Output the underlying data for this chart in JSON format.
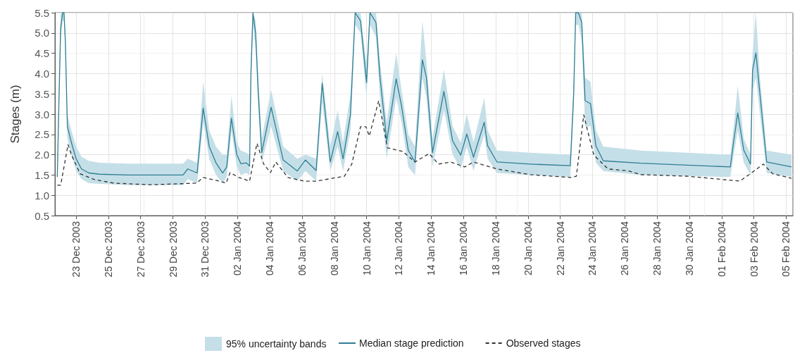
{
  "chart_data": {
    "type": "line",
    "ylabel": "Stages (m)",
    "annotations": [
      "95% uncertainty bands"
    ],
    "xlim": [
      "2003-12-21T16:30",
      "2004-02-05T10:00"
    ],
    "xticks": [
      {
        "value": "2003-12-23",
        "label": "23 Dec 2003"
      },
      {
        "value": "2003-12-25",
        "label": "25 Dec 2003"
      },
      {
        "value": "2003-12-27",
        "label": "27 Dec 2003"
      },
      {
        "value": "2003-12-29",
        "label": "29 Dec 2003"
      },
      {
        "value": "2003-12-31",
        "label": "31 Dec 2003"
      },
      {
        "value": "2004-01-02",
        "label": "02 Jan 2004"
      },
      {
        "value": "2004-01-04",
        "label": "04 Jan 2004"
      },
      {
        "value": "2004-01-06",
        "label": "06 Jan 2004"
      },
      {
        "value": "2004-01-08",
        "label": "08 Jan 2004"
      },
      {
        "value": "2004-01-10",
        "label": "10 Jan 2004"
      },
      {
        "value": "2004-01-12",
        "label": "12 Jan 2004"
      },
      {
        "value": "2004-01-14",
        "label": "14 Jan 2004"
      },
      {
        "value": "2004-01-16",
        "label": "16 Jan 2004"
      },
      {
        "value": "2004-01-18",
        "label": "18 Jan 2004"
      },
      {
        "value": "2004-01-20",
        "label": "20 Jan 2004"
      },
      {
        "value": "2004-01-22",
        "label": "22 Jan 2004"
      },
      {
        "value": "2004-01-24",
        "label": "24 Jan 2004"
      },
      {
        "value": "2004-01-26",
        "label": "26 Jan 2004"
      },
      {
        "value": "2004-01-28",
        "label": "28 Jan 2004"
      },
      {
        "value": "2004-01-30",
        "label": "30 Jan 2004"
      },
      {
        "value": "2004-02-01",
        "label": "01 Feb 2004"
      },
      {
        "value": "2004-02-03",
        "label": "03 Feb 2004"
      },
      {
        "value": "2004-02-05",
        "label": "05 Feb 2004"
      }
    ],
    "ylim": [
      0.5,
      5.5
    ],
    "yticks": [
      {
        "value": 0.5,
        "label": "0.5"
      },
      {
        "value": 1,
        "label": "1.0"
      },
      {
        "value": 1.5,
        "label": "1.5"
      },
      {
        "value": 2,
        "label": "2.0"
      },
      {
        "value": 2.5,
        "label": "2.5"
      },
      {
        "value": 3,
        "label": "3.0"
      },
      {
        "value": 3.5,
        "label": "3.5"
      },
      {
        "value": 4,
        "label": "4.0"
      },
      {
        "value": 4.5,
        "label": "4.5"
      },
      {
        "value": 5,
        "label": "5.0"
      },
      {
        "value": 5.5,
        "label": "5.5"
      }
    ],
    "grid": true,
    "legend": "bottom",
    "marker": "none",
    "series": [
      {
        "name": "Median stage prediction",
        "color": "#2e7f92",
        "line_style": "solid",
        "x": [
          "2003-12-21T20:00",
          "2003-12-21T23:00",
          "2003-12-22T01:00",
          "2003-12-22T04:00",
          "2003-12-22T06:00",
          "2003-12-22T08:00",
          "2003-12-22T11:00",
          "2003-12-22T17:00",
          "2003-12-23T00:00",
          "2003-12-23T08:00",
          "2003-12-23T19:00",
          "2003-12-24T11:00",
          "2003-12-26T05:00",
          "2003-12-29T15:00",
          "2003-12-29T22:00",
          "2003-12-30T12:00",
          "2003-12-30T21:00",
          "2003-12-31T06:00",
          "2003-12-31T16:00",
          "2004-01-01T02:00",
          "2004-01-01T08:00",
          "2004-01-01T15:00",
          "2004-01-01T23:00",
          "2004-01-02T05:00",
          "2004-01-02T13:00",
          "2004-01-02T18:00",
          "2004-01-02T20:00",
          "2004-01-02T23:00",
          "2004-01-03T03:00",
          "2004-01-03T07:00",
          "2004-01-03T12:00",
          "2004-01-04T02:00",
          "2004-01-04T20:00",
          "2004-01-05T17:00",
          "2004-01-06T05:00",
          "2004-01-06T21:00",
          "2004-01-07T06:00",
          "2004-01-07T18:00",
          "2004-01-08T05:00",
          "2004-01-08T13:00",
          "2004-01-09T00:00",
          "2004-01-09T07:00",
          "2004-01-09T15:00",
          "2004-01-10T00:00",
          "2004-01-10T05:00",
          "2004-01-10T14:00",
          "2004-01-10T20:00",
          "2004-01-11T06:00",
          "2004-01-11T20:00",
          "2004-01-12T04:00",
          "2004-01-12T14:00",
          "2004-01-13T00:00",
          "2004-01-13T11:00",
          "2004-01-13T17:00",
          "2004-01-14T02:00",
          "2004-01-14T19:00",
          "2004-01-15T08:00",
          "2004-01-15T20:00",
          "2004-01-16T05:00",
          "2004-01-16T15:00",
          "2004-01-17T07:00",
          "2004-01-17T12:00",
          "2004-01-18T02:00",
          "2004-01-20T03:00",
          "2004-01-22T15:00",
          "2004-01-22T20:00",
          "2004-01-22T23:00",
          "2004-01-23T03:00",
          "2004-01-23T08:00",
          "2004-01-23T13:00",
          "2004-01-23T21:00",
          "2004-01-24T05:00",
          "2004-01-24T16:00",
          "2004-01-27T00:00",
          "2004-02-01T13:00",
          "2004-02-01T18:00",
          "2004-02-02T00:00",
          "2004-02-02T09:00",
          "2004-02-02T19:00",
          "2004-02-02T22:00",
          "2004-02-03T03:00",
          "2004-02-03T09:00",
          "2004-02-03T19:00",
          "2004-02-05T08:00"
        ],
        "values": [
          1.45,
          3.7,
          5.1,
          5.5,
          5.5,
          4.8,
          2.7,
          2.3,
          1.9,
          1.65,
          1.55,
          1.52,
          1.5,
          1.5,
          1.65,
          1.55,
          3.15,
          2.2,
          1.8,
          1.55,
          1.7,
          2.9,
          2.0,
          1.78,
          1.8,
          1.72,
          4.0,
          5.5,
          5.0,
          3.5,
          2.05,
          3.17,
          1.87,
          1.6,
          1.87,
          1.61,
          3.76,
          1.82,
          2.57,
          1.9,
          2.98,
          5.5,
          5.3,
          3.78,
          5.5,
          5.26,
          3.9,
          2.34,
          3.87,
          3.2,
          2.11,
          1.82,
          4.34,
          3.9,
          2.05,
          3.56,
          2.34,
          1.99,
          2.51,
          1.94,
          2.8,
          2.22,
          1.82,
          1.77,
          1.73,
          3.5,
          5.5,
          5.5,
          5.26,
          3.33,
          3.26,
          2.22,
          1.85,
          1.79,
          1.7,
          2.34,
          3.03,
          2.11,
          1.77,
          4.08,
          4.51,
          3.5,
          1.82,
          1.7
        ],
        "upper": [
          1.6,
          4.0,
          5.5,
          5.5,
          5.5,
          5.0,
          3.0,
          2.6,
          2.2,
          1.95,
          1.85,
          1.8,
          1.78,
          1.78,
          1.9,
          1.8,
          3.8,
          2.6,
          2.2,
          2.0,
          2.0,
          3.45,
          2.3,
          2.1,
          2.05,
          2.0,
          4.3,
          5.5,
          5.3,
          3.9,
          2.4,
          3.6,
          2.2,
          1.9,
          2.0,
          1.9,
          4.0,
          2.2,
          3.1,
          2.3,
          3.5,
          5.5,
          5.5,
          4.2,
          5.5,
          5.5,
          4.3,
          2.8,
          4.5,
          3.6,
          2.5,
          2.2,
          5.3,
          4.3,
          2.4,
          4.1,
          2.7,
          2.3,
          3.0,
          2.3,
          3.4,
          2.6,
          2.1,
          2.05,
          2.0,
          3.8,
          5.5,
          5.5,
          5.5,
          3.9,
          3.8,
          2.6,
          2.2,
          2.1,
          2.0,
          2.7,
          3.7,
          2.4,
          2.0,
          4.5,
          5.5,
          3.9,
          2.1,
          2.0
        ],
        "lower": [
          1.3,
          3.4,
          4.8,
          5.3,
          5.3,
          4.5,
          2.4,
          2.0,
          1.6,
          1.4,
          1.3,
          1.28,
          1.25,
          1.25,
          1.4,
          1.3,
          2.8,
          1.9,
          1.5,
          1.3,
          1.45,
          2.6,
          1.7,
          1.5,
          1.55,
          1.5,
          3.6,
          5.2,
          4.6,
          3.1,
          1.8,
          2.7,
          1.6,
          1.35,
          1.6,
          1.35,
          3.3,
          1.6,
          2.2,
          1.6,
          2.6,
          5.2,
          5.0,
          3.4,
          5.2,
          4.9,
          3.4,
          1.9,
          3.4,
          2.8,
          1.7,
          1.5,
          3.9,
          3.4,
          1.7,
          3.1,
          2.0,
          1.65,
          2.2,
          1.6,
          2.5,
          1.9,
          1.55,
          1.5,
          1.45,
          3.2,
          5.2,
          5.2,
          4.8,
          2.7,
          2.7,
          1.8,
          1.6,
          1.5,
          1.45,
          2.0,
          2.6,
          1.8,
          1.5,
          3.6,
          3.9,
          3.0,
          1.55,
          1.45
        ]
      },
      {
        "name": "Observed stages",
        "color": "#333333",
        "line_style": "dashed",
        "x": [
          "2003-12-21T20:00",
          "2003-12-22T01:00",
          "2003-12-22T08:00",
          "2003-12-22T12:00",
          "2003-12-22T17:00",
          "2003-12-23T06:00",
          "2003-12-24T03:00",
          "2003-12-25T08:00",
          "2003-12-27T15:00",
          "2003-12-30T11:00",
          "2003-12-30T21:00",
          "2003-12-31T21:00",
          "2004-01-01T07:00",
          "2004-01-01T13:00",
          "2004-01-02T02:00",
          "2004-01-02T18:00",
          "2004-01-03T05:00",
          "2004-01-03T15:00",
          "2004-01-04T01:00",
          "2004-01-04T09:00",
          "2004-01-05T03:00",
          "2004-01-06T03:00",
          "2004-01-06T21:00",
          "2004-01-08T15:00",
          "2004-01-09T02:00",
          "2004-01-09T15:00",
          "2004-01-09T23:00",
          "2004-01-10T04:00",
          "2004-01-10T18:00",
          "2004-01-11T07:00",
          "2004-01-12T06:00",
          "2004-01-13T00:00",
          "2004-01-13T21:00",
          "2004-01-14T11:00",
          "2004-01-15T05:00",
          "2004-01-16T02:00",
          "2004-01-16T15:00",
          "2004-01-18T02:00",
          "2004-01-20T03:00",
          "2004-01-22T15:00",
          "2004-01-23T00:00",
          "2004-01-23T11:00",
          "2004-01-23T18:00",
          "2004-01-24T02:00",
          "2004-01-24T23:00",
          "2004-01-26T06:00",
          "2004-01-27T00:00",
          "2004-01-29T22:00",
          "2004-02-02T03:00",
          "2004-02-02T17:00",
          "2004-02-03T14:00",
          "2004-02-04T04:00",
          "2004-02-05T08:00"
        ],
        "values": [
          1.25,
          1.25,
          1.88,
          2.25,
          2.0,
          1.53,
          1.39,
          1.3,
          1.26,
          1.3,
          1.44,
          1.35,
          1.3,
          1.56,
          1.44,
          1.35,
          2.28,
          1.77,
          1.56,
          1.82,
          1.44,
          1.35,
          1.35,
          1.47,
          1.77,
          2.69,
          2.69,
          2.46,
          3.33,
          2.17,
          2.08,
          1.82,
          2.03,
          1.77,
          1.82,
          1.7,
          1.82,
          1.65,
          1.51,
          1.44,
          1.47,
          2.98,
          2.51,
          1.99,
          1.65,
          1.6,
          1.51,
          1.47,
          1.35,
          1.51,
          1.77,
          1.53,
          1.42
        ]
      }
    ]
  }
}
